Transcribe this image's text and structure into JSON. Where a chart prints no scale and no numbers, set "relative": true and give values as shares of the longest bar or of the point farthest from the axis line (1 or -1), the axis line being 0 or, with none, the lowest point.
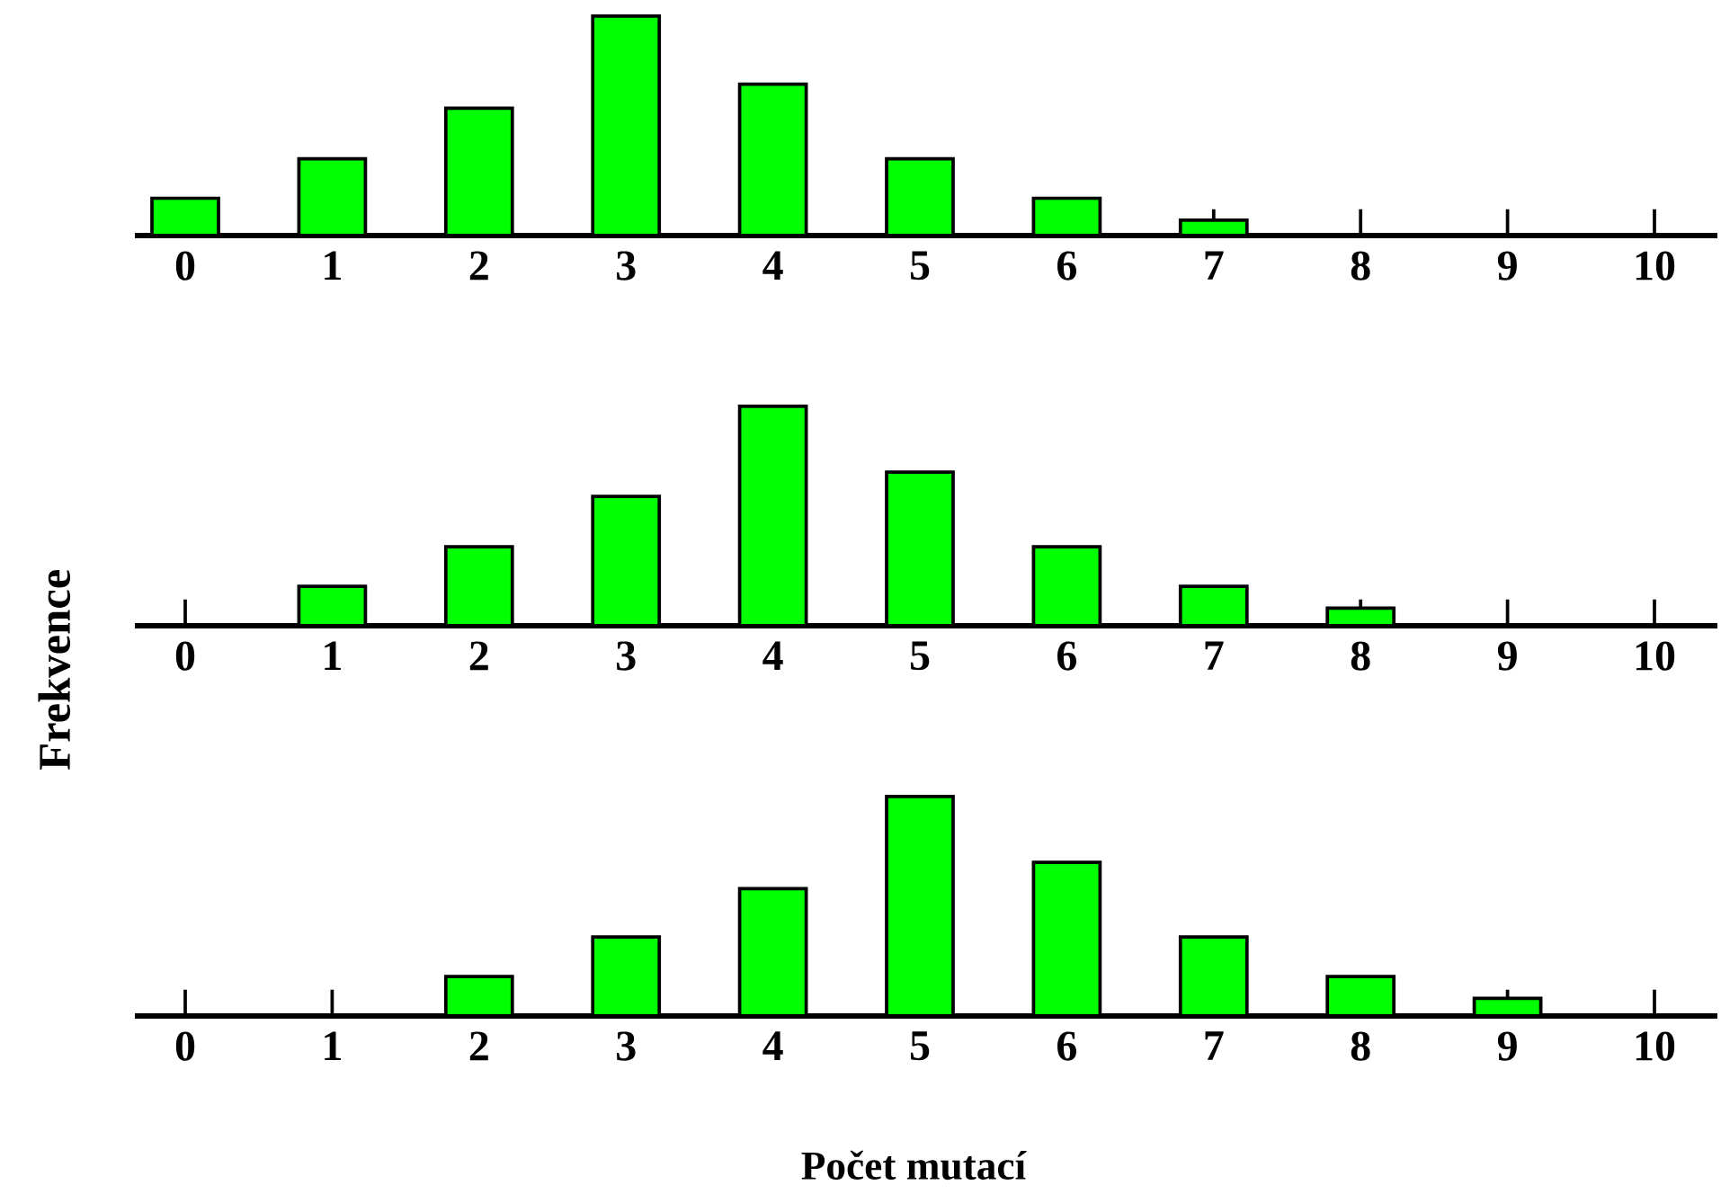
{
  "chart_data": [
    {
      "type": "bar",
      "relative": true,
      "color": "#00ff00",
      "categories": [
        "0",
        "1",
        "2",
        "3",
        "4",
        "5",
        "6",
        "7",
        "8",
        "9",
        "10"
      ],
      "values": [
        0.17,
        0.35,
        0.58,
        1,
        0.69,
        0.35,
        0.17,
        0.07,
        null,
        null,
        null
      ]
    },
    {
      "type": "bar",
      "relative": true,
      "color": "#00ff00",
      "ylabel": "Frekvence",
      "categories": [
        "0",
        "1",
        "2",
        "3",
        "4",
        "5",
        "6",
        "7",
        "8",
        "9",
        "10"
      ],
      "values": [
        null,
        0.18,
        0.36,
        0.59,
        1,
        0.7,
        0.36,
        0.18,
        0.08,
        null,
        null
      ]
    },
    {
      "type": "bar",
      "relative": true,
      "color": "#00ff00",
      "xlabel": "Počet mutací",
      "categories": [
        "0",
        "1",
        "2",
        "3",
        "4",
        "5",
        "6",
        "7",
        "8",
        "9",
        "10"
      ],
      "values": [
        null,
        null,
        0.18,
        0.36,
        0.58,
        1,
        0.7,
        0.36,
        0.18,
        0.08,
        null
      ]
    }
  ]
}
